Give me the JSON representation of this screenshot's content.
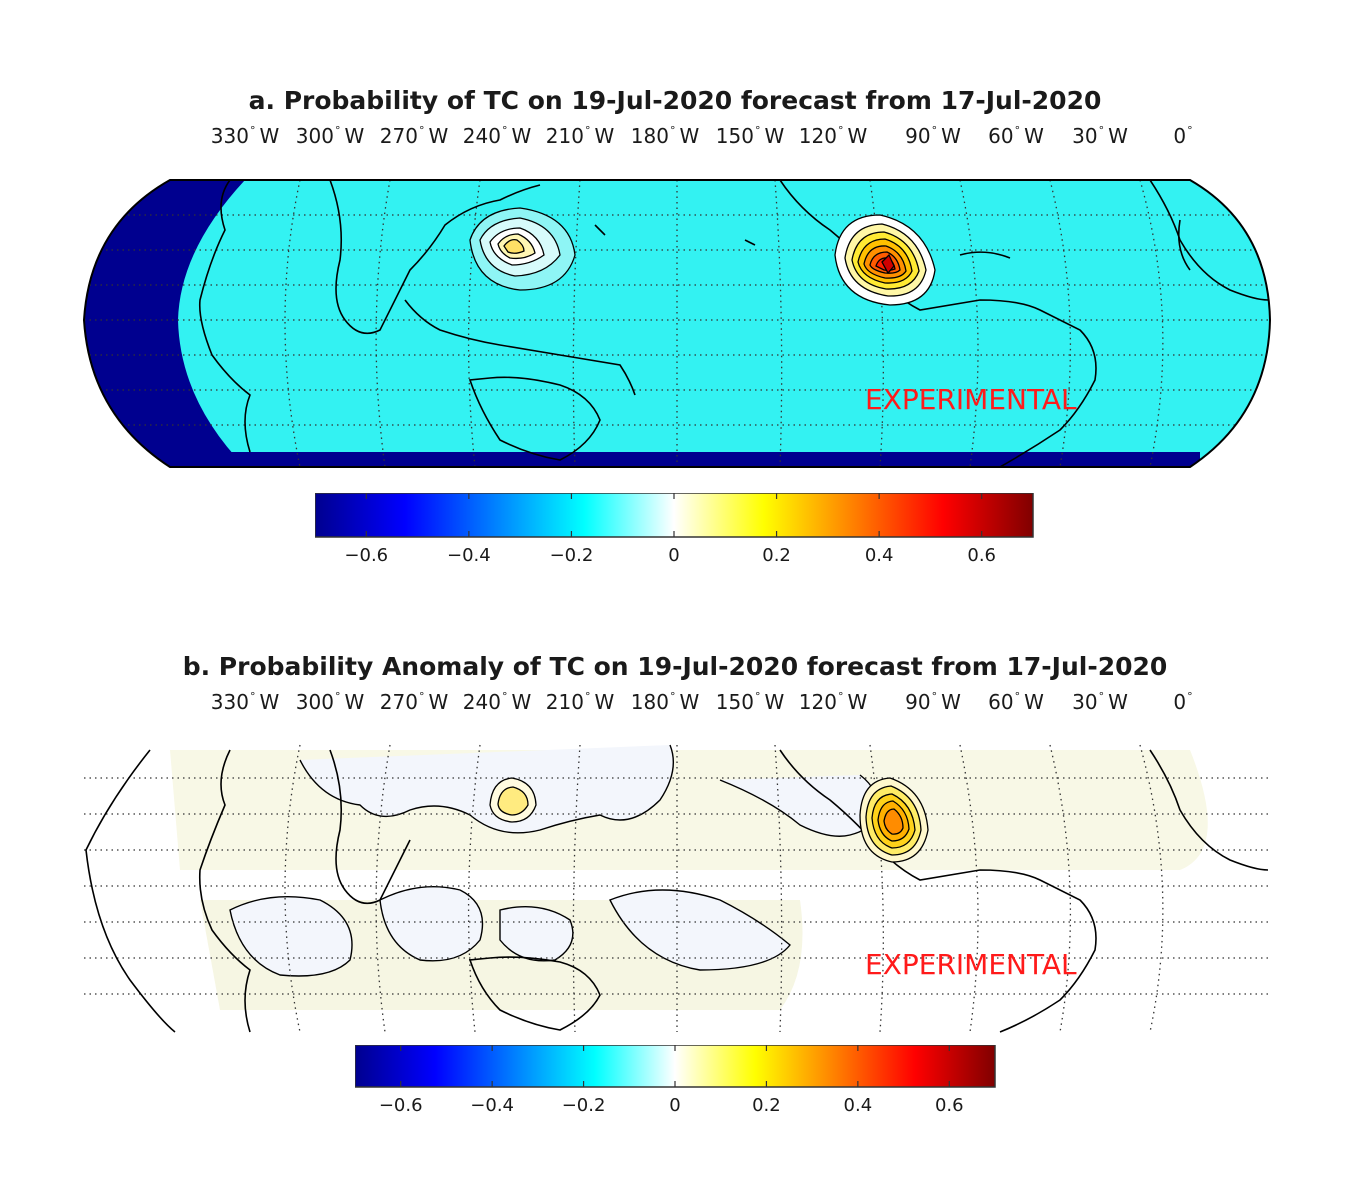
{
  "panels": [
    {
      "id": "a",
      "title": "a. Probability of TC on 19-Jul-2020 forecast from 17-Jul-2020",
      "background_color": "#33f2f2",
      "out_of_range_color": "#00008f"
    },
    {
      "id": "b",
      "title": "b. Probability Anomaly of TC on 19-Jul-2020 forecast from 17-Jul-2020",
      "background_color": "#ffffff"
    }
  ],
  "lon_labels": [
    {
      "num": "330",
      "hemi": "W"
    },
    {
      "num": "300",
      "hemi": "W"
    },
    {
      "num": "270",
      "hemi": "W"
    },
    {
      "num": "240",
      "hemi": "W"
    },
    {
      "num": "210",
      "hemi": "W"
    },
    {
      "num": "180",
      "hemi": "W"
    },
    {
      "num": "150",
      "hemi": "W"
    },
    {
      "num": "120",
      "hemi": "W"
    },
    {
      "num": "90",
      "hemi": "W"
    },
    {
      "num": "60",
      "hemi": "W"
    },
    {
      "num": "30",
      "hemi": "W"
    },
    {
      "num": "0",
      "hemi": ""
    }
  ],
  "watermark": "EXPERIMENTAL",
  "colorbar": {
    "min": -0.7,
    "max": 0.7,
    "ticks": [
      "−0.6",
      "−0.4",
      "−0.2",
      "0",
      "0.2",
      "0.4",
      "0.6"
    ],
    "tick_values": [
      -0.6,
      -0.4,
      -0.2,
      0,
      0.2,
      0.4,
      0.6
    ],
    "colors": [
      "#00008f",
      "#0000ff",
      "#0080ff",
      "#00ffff",
      "#ffffff",
      "#ffff00",
      "#ff8000",
      "#ff0000",
      "#800000"
    ]
  }
}
